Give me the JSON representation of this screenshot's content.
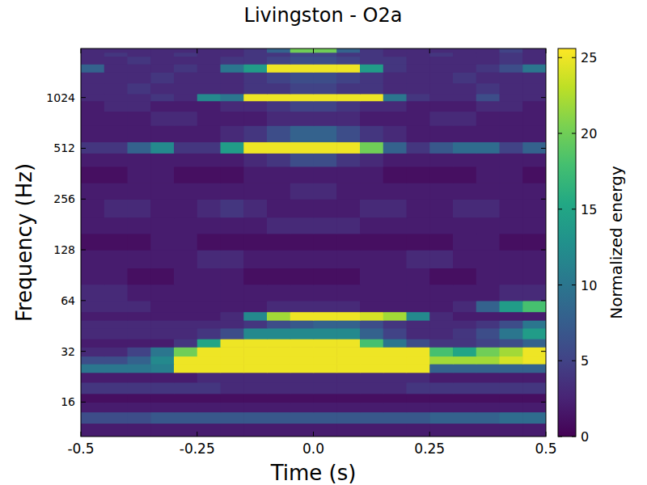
{
  "chart_data": {
    "type": "heatmap",
    "title": "Livingston - O2a",
    "x_label": "Time (s)",
    "y_label": "Frequency (Hz)",
    "xlim": [
      -0.5,
      0.5
    ],
    "xticks": [
      -0.5,
      -0.25,
      {
        "value": 0,
        "label": "0.0"
      },
      0.25,
      0.5
    ],
    "ylim": [
      10,
      2000
    ],
    "yticks": [
      16,
      32,
      64,
      128,
      256,
      512,
      1024
    ],
    "log": "y",
    "x_bins": [
      -0.5,
      -0.45,
      -0.4,
      -0.35,
      -0.3,
      -0.25,
      -0.2,
      -0.15,
      -0.1,
      -0.05,
      0,
      0.05,
      0.1,
      0.15,
      0.2,
      0.25,
      0.3,
      0.35,
      0.4,
      0.45,
      0.5
    ],
    "y_bins": [
      10,
      12,
      14,
      16,
      18,
      21,
      24,
      27,
      30,
      34,
      38,
      44,
      49,
      55,
      64,
      80,
      100,
      128,
      160,
      200,
      256,
      320,
      400,
      480,
      560,
      700,
      850,
      980,
      1080,
      1250,
      1450,
      1620,
      1800,
      1900,
      2000
    ],
    "values": [
      [
        2,
        2,
        2,
        2,
        2,
        2,
        2,
        2,
        2,
        2,
        2,
        2,
        2,
        2,
        2,
        2,
        2,
        2,
        2,
        2
      ],
      [
        6,
        6,
        6,
        7,
        7,
        7,
        7,
        7,
        7,
        7,
        7,
        7,
        7,
        7,
        7,
        8,
        8,
        8,
        9,
        9
      ],
      [
        2,
        2,
        2,
        2,
        2,
        2,
        2,
        2,
        2,
        2,
        2,
        2,
        2,
        2,
        2,
        2,
        2,
        2,
        2,
        2
      ],
      [
        1,
        1,
        1,
        1,
        1,
        1,
        1,
        1,
        1,
        1,
        1,
        1,
        1,
        1,
        1,
        1,
        1,
        1,
        1,
        1
      ],
      [
        4,
        4,
        4,
        4,
        4,
        4,
        3,
        3,
        3,
        3,
        3,
        3,
        3,
        3,
        4,
        4,
        4,
        4,
        4,
        4
      ],
      [
        2,
        2,
        2,
        2,
        2,
        3,
        3,
        3,
        3,
        3,
        3,
        3,
        3,
        3,
        3,
        2,
        2,
        2,
        2,
        2
      ],
      [
        10,
        10,
        10,
        11,
        25,
        25,
        25,
        25,
        25,
        25,
        25,
        25,
        25,
        25,
        25,
        8,
        8,
        8,
        8,
        8
      ],
      [
        6,
        6,
        8,
        12,
        25,
        25,
        25,
        25,
        25,
        25,
        25,
        25,
        25,
        25,
        25,
        22,
        22,
        22,
        24,
        25
      ],
      [
        3,
        3,
        5,
        10,
        20,
        25,
        25,
        25,
        25,
        25,
        25,
        25,
        25,
        25,
        25,
        18,
        15,
        20,
        22,
        25
      ],
      [
        2,
        2,
        2,
        2,
        4,
        15,
        25,
        25,
        25,
        25,
        25,
        25,
        18,
        10,
        6,
        4,
        4,
        5,
        6,
        8
      ],
      [
        3,
        3,
        3,
        3,
        3,
        4,
        6,
        12,
        12,
        12,
        12,
        12,
        8,
        5,
        3,
        3,
        4,
        6,
        10,
        14
      ],
      [
        3,
        3,
        3,
        3,
        3,
        3,
        3,
        4,
        6,
        7,
        8,
        8,
        6,
        4,
        3,
        3,
        3,
        4,
        6,
        10
      ],
      [
        2,
        2,
        2,
        2,
        2,
        2,
        3,
        12,
        22,
        25,
        25,
        25,
        24,
        22,
        12,
        3,
        2,
        2,
        2,
        2
      ],
      [
        3,
        3,
        3,
        2,
        2,
        2,
        2,
        2,
        3,
        3,
        3,
        3,
        2,
        2,
        2,
        2,
        3,
        8,
        14,
        18
      ],
      [
        3,
        3,
        2,
        2,
        2,
        2,
        2,
        2,
        2,
        2,
        2,
        2,
        2,
        2,
        2,
        2,
        2,
        2,
        3,
        3
      ],
      [
        2,
        2,
        1,
        1,
        2,
        2,
        2,
        1,
        1,
        1,
        1,
        1,
        2,
        2,
        2,
        1,
        1,
        2,
        2,
        2
      ],
      [
        2,
        2,
        2,
        2,
        2,
        3,
        3,
        2,
        2,
        2,
        2,
        2,
        2,
        2,
        3,
        3,
        2,
        2,
        2,
        2
      ],
      [
        1,
        1,
        1,
        2,
        2,
        1,
        1,
        1,
        1,
        1,
        1,
        1,
        1,
        1,
        1,
        1,
        2,
        2,
        1,
        1
      ],
      [
        2,
        2,
        2,
        2,
        2,
        2,
        2,
        2,
        3,
        3,
        3,
        3,
        2,
        2,
        2,
        2,
        2,
        2,
        2,
        2
      ],
      [
        2,
        3,
        3,
        2,
        2,
        3,
        4,
        3,
        2,
        2,
        2,
        2,
        3,
        3,
        2,
        2,
        3,
        3,
        2,
        2
      ],
      [
        2,
        2,
        2,
        2,
        2,
        2,
        2,
        2,
        2,
        3,
        3,
        2,
        2,
        2,
        2,
        2,
        2,
        2,
        2,
        2
      ],
      [
        1,
        1,
        2,
        2,
        1,
        1,
        1,
        2,
        2,
        2,
        2,
        2,
        2,
        1,
        1,
        1,
        1,
        2,
        2,
        1
      ],
      [
        2,
        2,
        2,
        2,
        2,
        2,
        2,
        3,
        4,
        6,
        6,
        4,
        3,
        2,
        2,
        2,
        2,
        2,
        2,
        2
      ],
      [
        4,
        4,
        8,
        12,
        4,
        4,
        14,
        25,
        25,
        25,
        25,
        25,
        20,
        8,
        4,
        7,
        9,
        9,
        5,
        8
      ],
      [
        2,
        2,
        2,
        2,
        2,
        2,
        3,
        4,
        6,
        8,
        8,
        6,
        4,
        3,
        2,
        2,
        2,
        2,
        2,
        2
      ],
      [
        2,
        2,
        2,
        3,
        3,
        2,
        2,
        2,
        3,
        3,
        3,
        3,
        2,
        2,
        2,
        3,
        3,
        2,
        2,
        2
      ],
      [
        2,
        3,
        3,
        2,
        2,
        2,
        3,
        3,
        4,
        5,
        5,
        4,
        3,
        3,
        2,
        2,
        2,
        3,
        3,
        2
      ],
      [
        3,
        3,
        3,
        4,
        3,
        12,
        10,
        25,
        25,
        25,
        25,
        25,
        25,
        10,
        4,
        3,
        3,
        6,
        3,
        3
      ],
      [
        3,
        3,
        4,
        3,
        3,
        3,
        3,
        4,
        4,
        5,
        5,
        4,
        4,
        3,
        3,
        3,
        3,
        4,
        3,
        3
      ],
      [
        3,
        3,
        3,
        4,
        3,
        3,
        3,
        4,
        5,
        6,
        6,
        5,
        4,
        3,
        3,
        3,
        4,
        3,
        3,
        3
      ],
      [
        8,
        3,
        3,
        3,
        4,
        3,
        10,
        14,
        25,
        25,
        25,
        25,
        14,
        4,
        3,
        3,
        3,
        4,
        6,
        10
      ],
      [
        3,
        3,
        4,
        3,
        3,
        3,
        4,
        4,
        5,
        6,
        6,
        5,
        4,
        4,
        3,
        3,
        3,
        3,
        4,
        3
      ],
      [
        3,
        4,
        3,
        3,
        4,
        3,
        3,
        4,
        4,
        5,
        5,
        4,
        4,
        3,
        3,
        4,
        3,
        3,
        4,
        3
      ],
      [
        3,
        3,
        3,
        3,
        3,
        3,
        3,
        4,
        8,
        20,
        20,
        8,
        4,
        3,
        3,
        3,
        3,
        3,
        5,
        3
      ]
    ],
    "color_label": "Normalized energy",
    "color_range": [
      0,
      25.6
    ],
    "color_ticks": [
      0,
      5,
      10,
      15,
      20,
      25
    ]
  }
}
